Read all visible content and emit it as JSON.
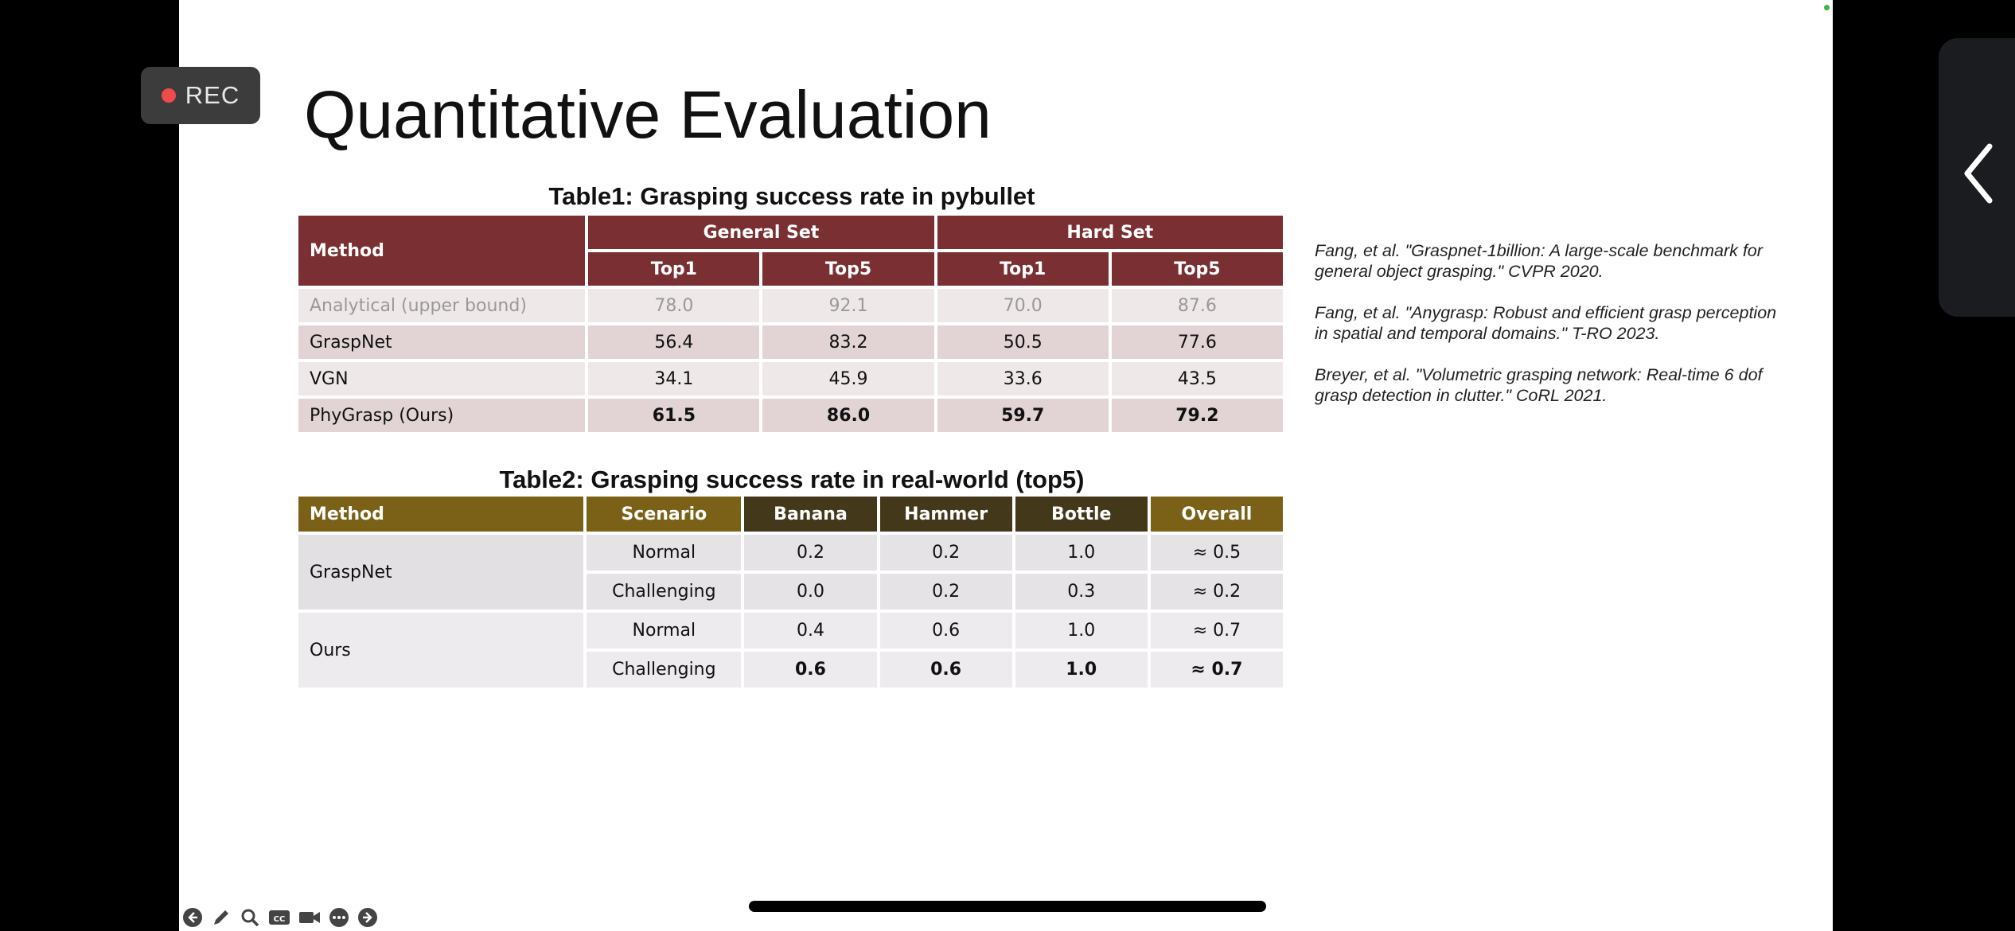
{
  "recording": {
    "label": "REC"
  },
  "slide": {
    "title": "Quantitative Evaluation"
  },
  "table1": {
    "caption": "Table1: Grasping success rate in pybullet",
    "method_header": "Method",
    "group_headers": [
      "General Set",
      "Hard Set"
    ],
    "sub_headers": [
      "Top1",
      "Top5",
      "Top1",
      "Top5"
    ],
    "rows": [
      {
        "method": "Analytical (upper bound)",
        "values": [
          "78.0",
          "92.1",
          "70.0",
          "87.6"
        ]
      },
      {
        "method": "GraspNet",
        "values": [
          "56.4",
          "83.2",
          "50.5",
          "77.6"
        ]
      },
      {
        "method": "VGN",
        "values": [
          "34.1",
          "45.9",
          "33.6",
          "43.5"
        ]
      },
      {
        "method": "PhyGrasp (Ours)",
        "values": [
          "61.5",
          "86.0",
          "59.7",
          "79.2"
        ]
      }
    ]
  },
  "table2": {
    "caption": "Table2: Grasping success rate in real-world (top5)",
    "headers": [
      "Method",
      "Scenario",
      "Banana",
      "Hammer",
      "Bottle",
      "Overall"
    ],
    "groups": [
      {
        "method": "GraspNet",
        "rows": [
          {
            "scenario": "Normal",
            "values": [
              "0.2",
              "0.2",
              "1.0",
              "≈ 0.5"
            ]
          },
          {
            "scenario": "Challenging",
            "values": [
              "0.0",
              "0.2",
              "0.3",
              "≈ 0.2"
            ]
          }
        ]
      },
      {
        "method": "Ours",
        "rows": [
          {
            "scenario": "Normal",
            "values": [
              "0.4",
              "0.6",
              "1.0",
              "≈ 0.7"
            ]
          },
          {
            "scenario": "Challenging",
            "values": [
              "0.6",
              "0.6",
              "1.0",
              "≈ 0.7"
            ]
          }
        ]
      }
    ]
  },
  "references": [
    "Fang, et al. \"Graspnet-1billion: A large-scale benchmark for general object grasping.\" CVPR 2020.",
    "Fang, et al. \"Anygrasp: Robust and efficient grasp perception in spatial and temporal domains.\" T-RO 2023.",
    "Breyer, et al. \"Volumetric grasping network: Real-time 6 dof grasp detection in clutter.\" CoRL 2021."
  ],
  "toolbar": {
    "icons": [
      "back-arrow-icon",
      "pen-icon",
      "zoom-icon",
      "captions-icon",
      "camera-icon",
      "more-icon",
      "forward-arrow-icon"
    ]
  },
  "colors": {
    "table1_header": "#7a2f32",
    "table2_header": "#7b6118",
    "table2_header_dark": "#43391a",
    "rec_dot": "#f04b4b"
  }
}
